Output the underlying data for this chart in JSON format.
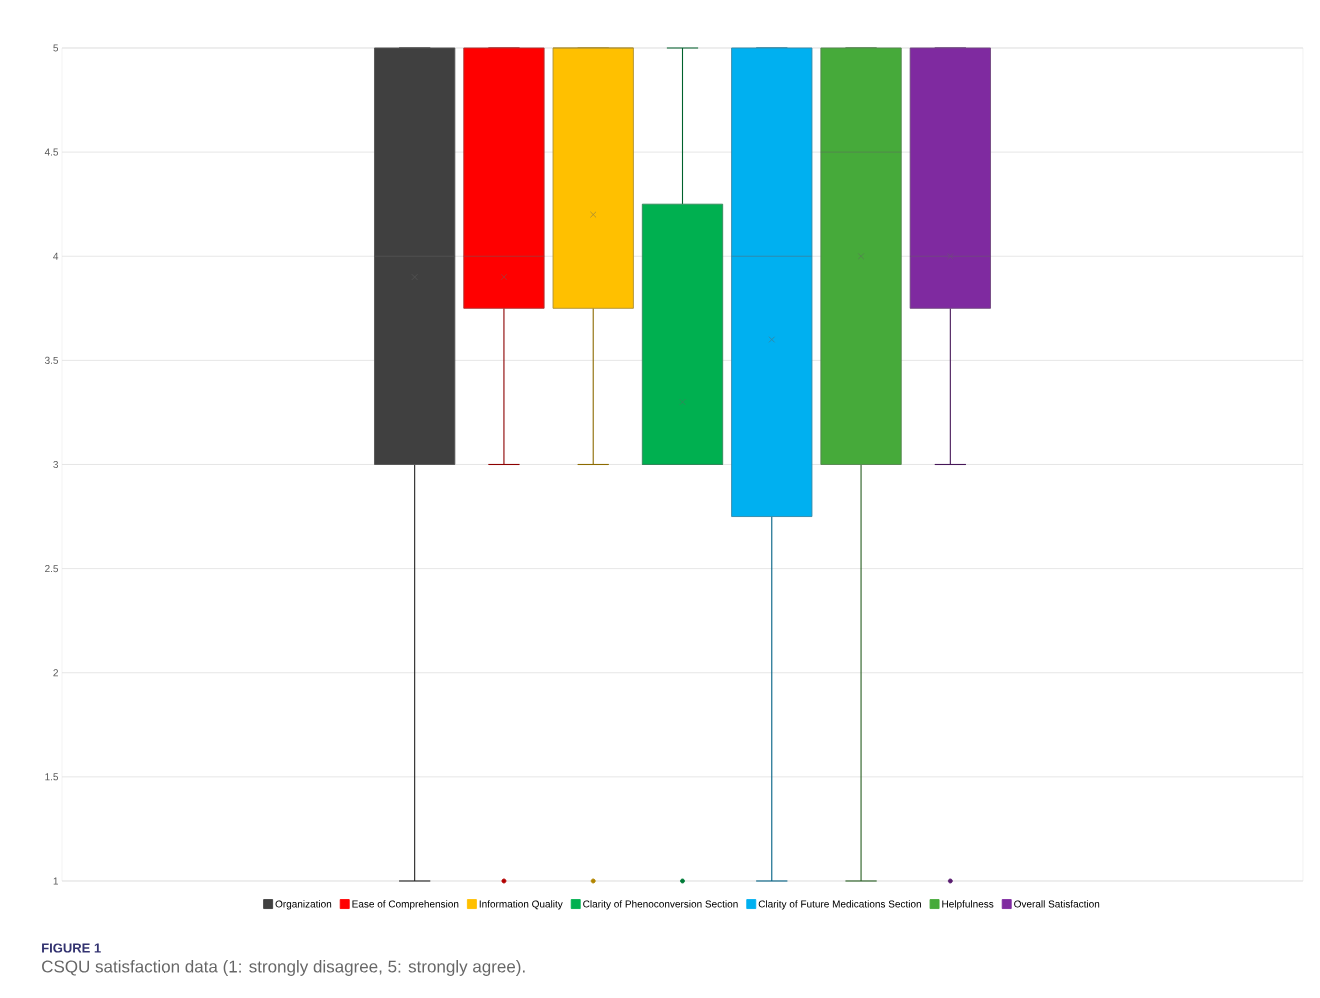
{
  "chart_data": {
    "type": "box",
    "categories": [
      null
    ],
    "series": [
      {
        "name": "Organization",
        "color": "#404040",
        "boxes": [
          {
            "low": 1,
            "q1": 3,
            "median": 4,
            "q3": 5,
            "high": 5,
            "mean": 3.9
          }
        ]
      },
      {
        "name": "Ease of Comprehension",
        "color": "#ff0000",
        "boxes": [
          {
            "low": 3,
            "q1": 3.75,
            "median": 4,
            "q3": 5,
            "high": 5,
            "mean": 3.9,
            "outliers": [
              1
            ]
          }
        ]
      },
      {
        "name": "Information Quality",
        "color": "#ffc000",
        "boxes": [
          {
            "low": 3,
            "q1": 3.75,
            "median": 5,
            "q3": 5,
            "high": 5,
            "mean": 4.2,
            "outliers": [
              1
            ]
          }
        ]
      },
      {
        "name": "Clarity of Phenoconversion Section",
        "color": "#00b050",
        "boxes": [
          {
            "low": 3,
            "q1": 3,
            "median": 3,
            "q3": 4.25,
            "high": 5,
            "mean": 3.3,
            "outliers": [
              1
            ]
          }
        ]
      },
      {
        "name": "Clarity of Future Medications Section",
        "color": "#00b0f0",
        "boxes": [
          {
            "low": 1,
            "q1": 2.75,
            "median": 4,
            "q3": 5,
            "high": 5,
            "mean": 3.6
          }
        ]
      },
      {
        "name": "Helpfulness",
        "color": "#46aa3a",
        "boxes": [
          {
            "low": 1,
            "q1": 3,
            "median": 4.5,
            "q3": 5,
            "high": 5,
            "mean": 4
          }
        ]
      },
      {
        "name": "Overall Satisfaction",
        "color": "#7f2aa0",
        "boxes": [
          {
            "low": 3,
            "q1": 3.75,
            "median": 4,
            "q3": 5,
            "high": 5,
            "mean": 4,
            "outliers": [
              1
            ]
          }
        ]
      }
    ],
    "ylim": [
      1,
      5
    ],
    "yticks": [
      1,
      1.5,
      2,
      2.5,
      3,
      3.5,
      4,
      4.5,
      5
    ],
    "grid": "y",
    "legend": "bottom",
    "tick_labels": "y",
    "annotations": [
      "FIGURE 1",
      "CSQU satisfaction data (1: strongly disagree, 5: strongly agree)."
    ]
  }
}
